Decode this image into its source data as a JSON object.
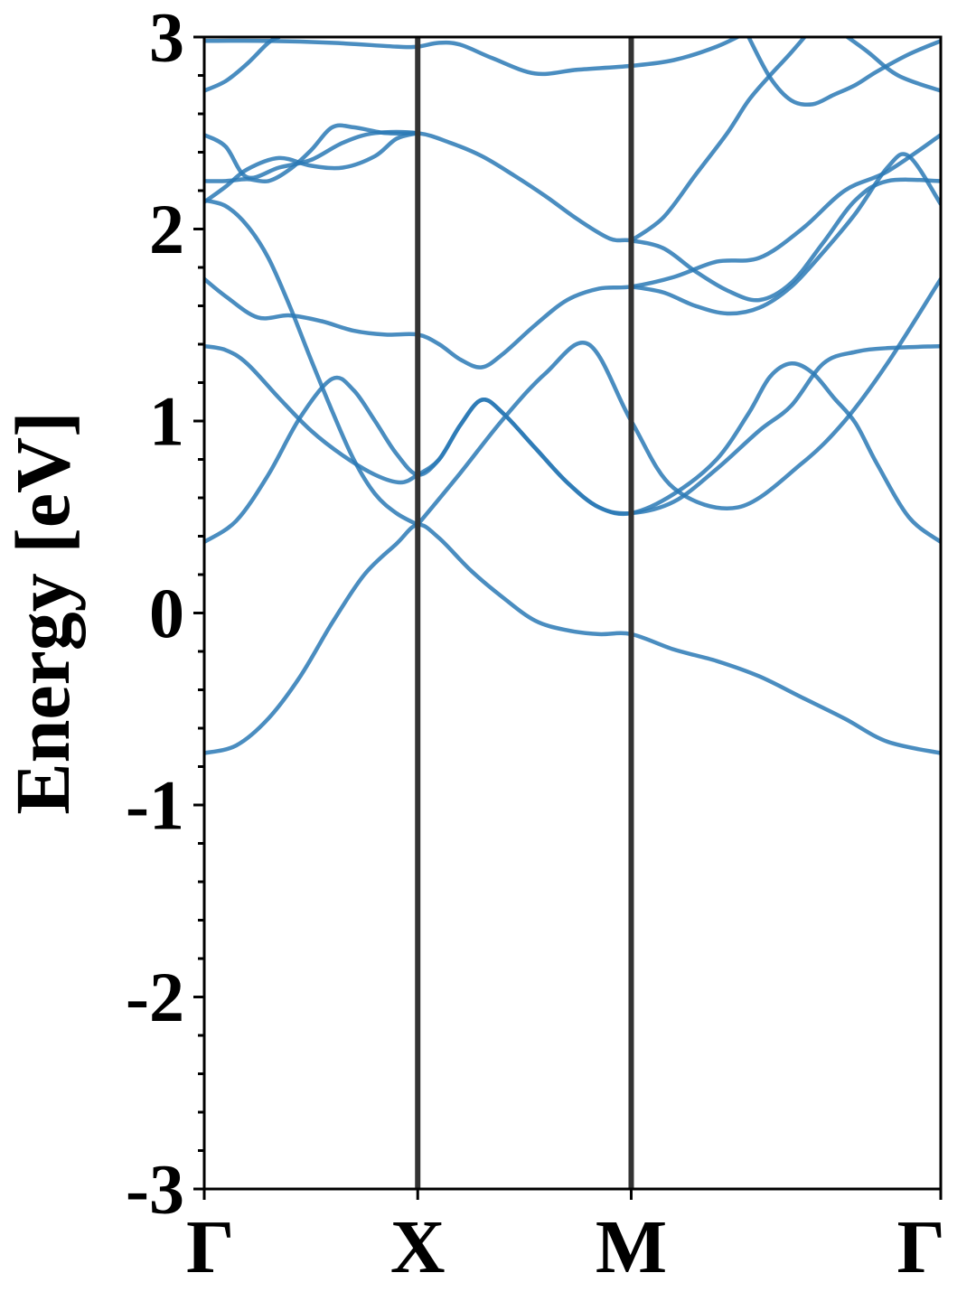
{
  "chart_data": {
    "type": "line",
    "title": "",
    "xlabel": "",
    "ylabel": "Energy [eV]",
    "ylim": [
      -3,
      3
    ],
    "yticks": [
      "-3",
      "-2",
      "-1",
      "0",
      "1",
      "2",
      "3"
    ],
    "yminor_step": 0.2,
    "x_range": [
      0,
      3.45
    ],
    "high_symmetry_points": [
      {
        "label": "Γ",
        "x": 0
      },
      {
        "label": "X",
        "x": 1.0
      },
      {
        "label": "M",
        "x": 2.0
      },
      {
        "label": "Γ",
        "x": 3.45
      }
    ],
    "grid": false,
    "legend": "none",
    "band_color": "#2a79b5",
    "divider_color": "#333333",
    "series": [
      {
        "points": [
          [
            0,
            -0.73
          ],
          [
            0.15,
            -0.69
          ],
          [
            0.3,
            -0.55
          ],
          [
            0.45,
            -0.33
          ],
          [
            0.6,
            -0.05
          ],
          [
            0.75,
            0.2
          ],
          [
            0.9,
            0.36
          ],
          [
            1.0,
            0.46
          ],
          [
            1.1,
            0.39
          ],
          [
            1.25,
            0.22
          ],
          [
            1.4,
            0.08
          ],
          [
            1.55,
            -0.04
          ],
          [
            1.7,
            -0.09
          ],
          [
            1.85,
            -0.11
          ],
          [
            2.0,
            -0.11
          ],
          [
            2.2,
            -0.19
          ],
          [
            2.4,
            -0.25
          ],
          [
            2.6,
            -0.33
          ],
          [
            2.8,
            -0.44
          ],
          [
            3.0,
            -0.55
          ],
          [
            3.2,
            -0.67
          ],
          [
            3.45,
            -0.73
          ]
        ]
      },
      {
        "points": [
          [
            0,
            0.37
          ],
          [
            0.15,
            0.48
          ],
          [
            0.3,
            0.72
          ],
          [
            0.45,
            1.02
          ],
          [
            0.6,
            1.22
          ],
          [
            0.7,
            1.16
          ],
          [
            0.8,
            1.0
          ],
          [
            0.9,
            0.83
          ],
          [
            1.0,
            0.72
          ],
          [
            1.1,
            0.8
          ],
          [
            1.2,
            0.98
          ],
          [
            1.3,
            1.11
          ],
          [
            1.4,
            1.04
          ],
          [
            1.55,
            0.86
          ],
          [
            1.7,
            0.68
          ],
          [
            1.85,
            0.55
          ],
          [
            2.0,
            0.52
          ],
          [
            2.2,
            0.58
          ],
          [
            2.4,
            0.75
          ],
          [
            2.6,
            0.95
          ],
          [
            2.75,
            1.08
          ],
          [
            2.9,
            1.3
          ],
          [
            3.05,
            1.36
          ],
          [
            3.2,
            1.38
          ],
          [
            3.45,
            1.39
          ]
        ]
      },
      {
        "points": [
          [
            0,
            1.39
          ],
          [
            0.1,
            1.37
          ],
          [
            0.2,
            1.3
          ],
          [
            0.35,
            1.12
          ],
          [
            0.5,
            0.95
          ],
          [
            0.65,
            0.82
          ],
          [
            0.8,
            0.72
          ],
          [
            0.92,
            0.68
          ],
          [
            1.0,
            0.72
          ],
          [
            1.1,
            0.8
          ],
          [
            1.2,
            0.98
          ],
          [
            1.3,
            1.11
          ],
          [
            1.4,
            1.04
          ],
          [
            1.55,
            0.86
          ],
          [
            1.7,
            0.68
          ],
          [
            1.85,
            0.55
          ],
          [
            2.0,
            0.52
          ],
          [
            2.2,
            0.62
          ],
          [
            2.4,
            0.8
          ],
          [
            2.55,
            1.04
          ],
          [
            2.65,
            1.23
          ],
          [
            2.75,
            1.3
          ],
          [
            2.85,
            1.25
          ],
          [
            2.95,
            1.12
          ],
          [
            3.05,
            0.99
          ],
          [
            3.15,
            0.78
          ],
          [
            3.3,
            0.5
          ],
          [
            3.45,
            0.37
          ]
        ]
      },
      {
        "points": [
          [
            0,
            2.15
          ],
          [
            0.1,
            2.12
          ],
          [
            0.2,
            2.02
          ],
          [
            0.3,
            1.85
          ],
          [
            0.4,
            1.6
          ],
          [
            0.5,
            1.32
          ],
          [
            0.6,
            1.05
          ],
          [
            0.7,
            0.8
          ],
          [
            0.8,
            0.62
          ],
          [
            0.9,
            0.52
          ],
          [
            1.0,
            0.46
          ]
        ]
      },
      {
        "points": [
          [
            1.0,
            0.46
          ],
          [
            1.2,
            0.73
          ],
          [
            1.4,
            1.01
          ],
          [
            1.6,
            1.25
          ],
          [
            1.8,
            1.4
          ],
          [
            2.0,
            1.0
          ],
          [
            2.2,
            0.65
          ],
          [
            2.5,
            0.55
          ],
          [
            2.8,
            0.78
          ],
          [
            3.0,
            1.0
          ],
          [
            3.2,
            1.3
          ],
          [
            3.45,
            1.74
          ]
        ]
      },
      {
        "points": [
          [
            0,
            1.74
          ],
          [
            0.1,
            1.65
          ],
          [
            0.25,
            1.54
          ],
          [
            0.4,
            1.55
          ],
          [
            0.55,
            1.52
          ],
          [
            0.7,
            1.47
          ],
          [
            0.85,
            1.45
          ],
          [
            1.0,
            1.45
          ],
          [
            1.1,
            1.4
          ],
          [
            1.2,
            1.32
          ],
          [
            1.3,
            1.28
          ],
          [
            1.4,
            1.35
          ],
          [
            1.55,
            1.5
          ],
          [
            1.7,
            1.63
          ],
          [
            1.85,
            1.69
          ],
          [
            2.0,
            1.7
          ],
          [
            2.2,
            1.75
          ],
          [
            2.4,
            1.83
          ],
          [
            2.6,
            1.85
          ],
          [
            2.8,
            2.0
          ],
          [
            3.0,
            2.2
          ],
          [
            3.2,
            2.3
          ],
          [
            3.45,
            2.49
          ]
        ]
      },
      {
        "points": [
          [
            0,
            2.49
          ],
          [
            0.1,
            2.43
          ],
          [
            0.2,
            2.27
          ],
          [
            0.35,
            2.32
          ],
          [
            0.5,
            2.36
          ],
          [
            0.65,
            2.45
          ],
          [
            0.8,
            2.5
          ],
          [
            1.0,
            2.5
          ],
          [
            1.15,
            2.45
          ],
          [
            1.3,
            2.38
          ],
          [
            1.45,
            2.28
          ],
          [
            1.6,
            2.17
          ],
          [
            1.75,
            2.05
          ],
          [
            1.9,
            1.95
          ],
          [
            2.0,
            1.94
          ],
          [
            2.15,
            1.9
          ],
          [
            2.3,
            1.78
          ],
          [
            2.45,
            1.68
          ],
          [
            2.6,
            1.63
          ],
          [
            2.75,
            1.72
          ],
          [
            2.9,
            1.93
          ],
          [
            3.05,
            2.15
          ],
          [
            3.2,
            2.25
          ],
          [
            3.45,
            2.25
          ]
        ]
      },
      {
        "points": [
          [
            0,
            2.25
          ],
          [
            0.1,
            2.25
          ],
          [
            0.2,
            2.26
          ],
          [
            0.3,
            2.25
          ],
          [
            0.4,
            2.31
          ],
          [
            0.5,
            2.41
          ],
          [
            0.6,
            2.53
          ],
          [
            0.7,
            2.53
          ],
          [
            0.85,
            2.5
          ],
          [
            1.0,
            2.5
          ]
        ]
      },
      {
        "points": [
          [
            0,
            2.14
          ],
          [
            0.1,
            2.22
          ],
          [
            0.2,
            2.31
          ],
          [
            0.35,
            2.37
          ],
          [
            0.5,
            2.33
          ],
          [
            0.65,
            2.32
          ],
          [
            0.8,
            2.38
          ],
          [
            0.9,
            2.47
          ],
          [
            1.0,
            2.5
          ]
        ]
      },
      {
        "points": [
          [
            2.0,
            1.7
          ],
          [
            2.15,
            1.67
          ],
          [
            2.3,
            1.6
          ],
          [
            2.45,
            1.56
          ],
          [
            2.6,
            1.59
          ],
          [
            2.75,
            1.7
          ],
          [
            2.9,
            1.88
          ],
          [
            3.05,
            2.08
          ],
          [
            3.2,
            2.32
          ],
          [
            3.3,
            2.38
          ],
          [
            3.45,
            2.13
          ]
        ]
      },
      {
        "points": [
          [
            2.0,
            1.94
          ],
          [
            2.15,
            2.06
          ],
          [
            2.3,
            2.28
          ],
          [
            2.45,
            2.5
          ],
          [
            2.55,
            2.67
          ],
          [
            2.65,
            2.8
          ],
          [
            2.75,
            2.92
          ],
          [
            2.85,
            3.05
          ]
        ]
      },
      {
        "points": [
          [
            0,
            2.72
          ],
          [
            0.1,
            2.77
          ],
          [
            0.2,
            2.86
          ],
          [
            0.3,
            2.97
          ],
          [
            0.35,
            3.0
          ]
        ]
      },
      {
        "points": [
          [
            0,
            2.98
          ],
          [
            0.3,
            2.98
          ],
          [
            0.6,
            2.97
          ],
          [
            0.9,
            2.95
          ],
          [
            1.0,
            2.95
          ],
          [
            1.1,
            2.97
          ],
          [
            1.2,
            2.96
          ],
          [
            1.35,
            2.89
          ],
          [
            1.55,
            2.81
          ],
          [
            1.75,
            2.83
          ],
          [
            2.0,
            2.85
          ],
          [
            2.2,
            2.88
          ],
          [
            2.4,
            2.95
          ],
          [
            2.55,
            3.03
          ]
        ]
      },
      {
        "points": [
          [
            2.55,
            3.0
          ],
          [
            2.65,
            2.79
          ],
          [
            2.75,
            2.67
          ],
          [
            2.85,
            2.65
          ],
          [
            2.95,
            2.7
          ],
          [
            3.05,
            2.75
          ],
          [
            3.15,
            2.82
          ],
          [
            3.3,
            2.91
          ],
          [
            3.45,
            2.98
          ]
        ]
      },
      {
        "points": [
          [
            2.95,
            3.05
          ],
          [
            3.1,
            2.93
          ],
          [
            3.25,
            2.8
          ],
          [
            3.45,
            2.72
          ]
        ]
      }
    ]
  }
}
